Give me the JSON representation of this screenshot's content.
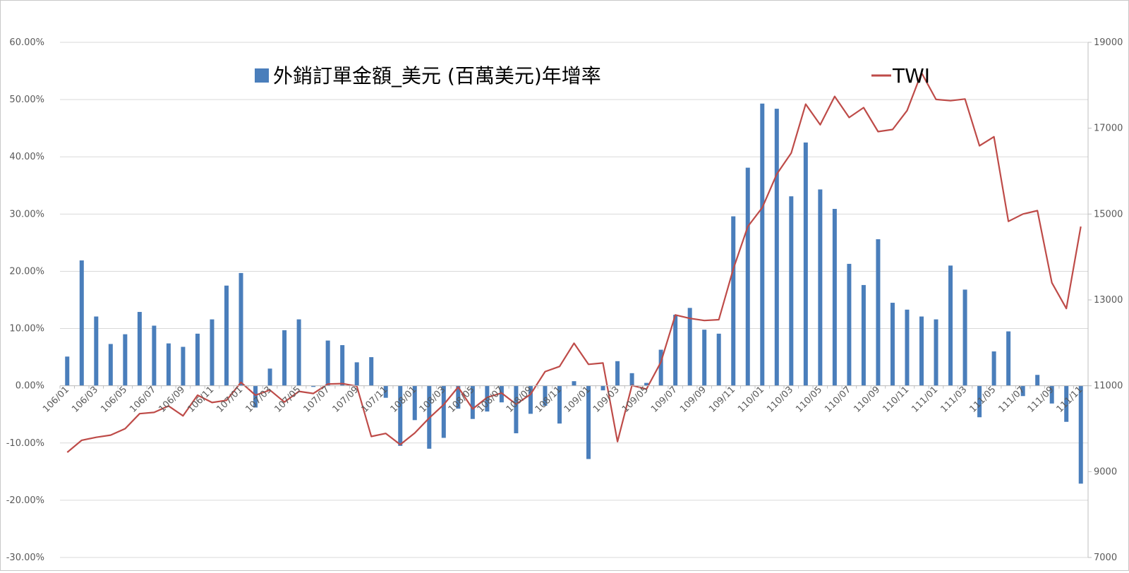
{
  "chart_data": {
    "type": "bar+line",
    "categories": [
      "106/01",
      "106/02",
      "106/03",
      "106/04",
      "106/05",
      "106/06",
      "106/07",
      "106/08",
      "106/09",
      "106/10",
      "106/11",
      "106/12",
      "107/01",
      "107/02",
      "107/03",
      "107/04",
      "107/05",
      "107/06",
      "107/07",
      "107/08",
      "107/09",
      "107/10",
      "107/11",
      "107/12",
      "108/01",
      "108/02",
      "108/03",
      "108/04",
      "108/05",
      "108/06",
      "108/07",
      "108/08",
      "108/09",
      "108/10",
      "108/11",
      "108/12",
      "109/01",
      "109/02",
      "109/03",
      "109/04",
      "109/05",
      "109/06",
      "109/07",
      "109/08",
      "109/09",
      "109/10",
      "109/11",
      "109/12",
      "110/01",
      "110/02",
      "110/03",
      "110/04",
      "110/05",
      "110/06",
      "110/07",
      "110/08",
      "110/09",
      "110/10",
      "110/11",
      "110/12",
      "111/01",
      "111/02",
      "111/03",
      "111/04",
      "111/05",
      "111/06",
      "111/07",
      "111/08",
      "111/09",
      "111/10",
      "111/11"
    ],
    "axis_labels": [
      "106/01",
      "106/03",
      "106/05",
      "106/07",
      "106/09",
      "106/11",
      "107/01",
      "107/03",
      "107/05",
      "107/07",
      "107/09",
      "107/11",
      "108/01",
      "108/03",
      "108/05",
      "108/07",
      "108/09",
      "108/11",
      "109/01",
      "109/03",
      "109/05",
      "109/07",
      "109/09",
      "109/11",
      "110/01",
      "110/03",
      "110/05",
      "110/07",
      "110/09",
      "110/11",
      "111/01",
      "111/03",
      "111/05",
      "111/07",
      "111/09",
      "111/11"
    ],
    "series": [
      {
        "name": "外銷訂單金額_美元 (百萬美元)年增率",
        "kind": "bar",
        "axis": "left",
        "color": "#4a7ebb",
        "values": [
          5.1,
          21.9,
          12.1,
          7.3,
          9.0,
          12.9,
          10.5,
          7.4,
          6.8,
          9.1,
          11.6,
          17.5,
          19.7,
          -3.8,
          3.0,
          9.7,
          11.6,
          -0.2,
          7.9,
          7.1,
          4.1,
          5.0,
          -2.1,
          -10.5,
          -6.0,
          -11.0,
          -9.1,
          -4.0,
          -5.8,
          -4.5,
          -2.9,
          -8.3,
          -4.9,
          -3.5,
          -6.6,
          0.8,
          -12.8,
          -0.8,
          4.3,
          2.2,
          0.5,
          6.3,
          12.4,
          13.6,
          9.8,
          9.1,
          29.6,
          38.1,
          49.3,
          48.4,
          33.1,
          42.5,
          34.3,
          30.9,
          21.3,
          17.6,
          25.6,
          14.5,
          13.3,
          12.1,
          11.6,
          21.0,
          16.8,
          -5.5,
          6.0,
          9.5,
          -1.8,
          1.9,
          -3.1,
          -6.3,
          -17.1
        ]
      },
      {
        "name": "TWI",
        "kind": "line",
        "axis": "right",
        "color": "#be4b48",
        "values": [
          9450,
          9730,
          9800,
          9850,
          10000,
          10350,
          10380,
          10530,
          10300,
          10780,
          10610,
          10660,
          11080,
          10780,
          10900,
          10620,
          10870,
          10820,
          11040,
          11050,
          10990,
          9820,
          9890,
          9630,
          9900,
          10250,
          10560,
          10970,
          10460,
          10730,
          10830,
          10570,
          10800,
          11330,
          11450,
          11990,
          11500,
          11530,
          9700,
          11010,
          10920,
          11550,
          12650,
          12570,
          12520,
          12540,
          13720,
          14710,
          15150,
          15930,
          16420,
          17560,
          17080,
          17740,
          17250,
          17480,
          16920,
          16970,
          17410,
          18290,
          17670,
          17640,
          17680,
          16590,
          16800,
          14830,
          15000,
          15080,
          13400,
          12800,
          14710
        ]
      }
    ],
    "yleft": {
      "min": -30,
      "max": 60,
      "step": 10,
      "tick_labels": [
        "-30.00%",
        "-20.00%",
        "-10.00%",
        "0.00%",
        "10.00%",
        "20.00%",
        "30.00%",
        "40.00%",
        "50.00%",
        "60.00%"
      ]
    },
    "yright": {
      "min": 7000,
      "max": 19000,
      "step": 2000,
      "tick_labels": [
        "7000",
        "9000",
        "11000",
        "13000",
        "15000",
        "17000",
        "19000"
      ]
    },
    "grid": true,
    "legend": [
      {
        "label": "外銷訂單金額_美元 (百萬美元)年增率",
        "marker": "square",
        "color": "#4a7ebb"
      },
      {
        "label": "TWI",
        "marker": "line",
        "color": "#be4b48"
      }
    ]
  }
}
